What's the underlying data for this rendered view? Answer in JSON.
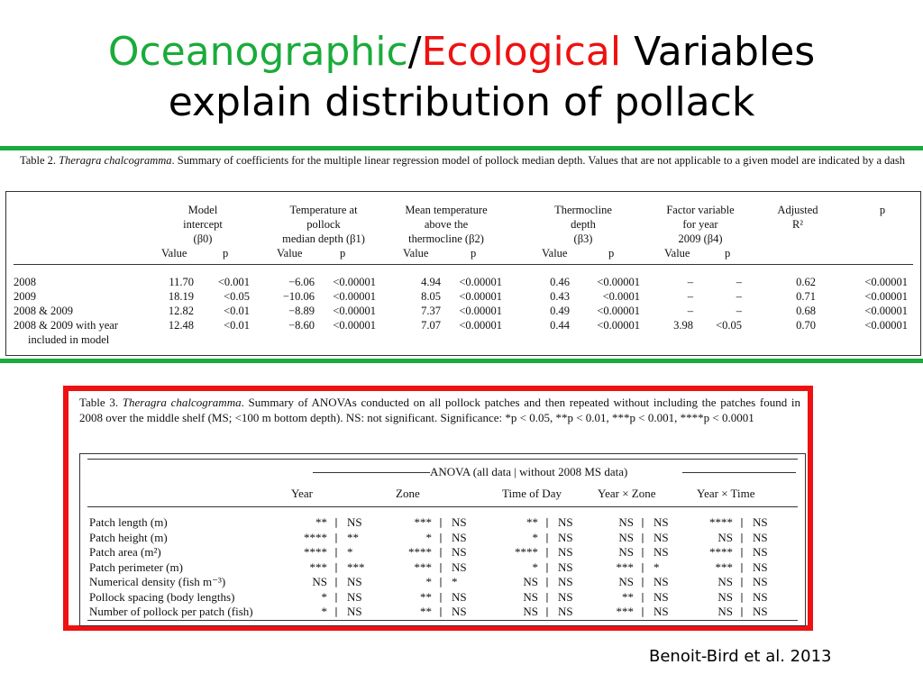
{
  "title": {
    "word1": "Oceanographic",
    "slash": "/",
    "word2": "Ecological",
    "rest1": " Variables",
    "line2": "explain distribution of pollack"
  },
  "colors": {
    "green": "#1aab3a",
    "red": "#ee1111"
  },
  "table2": {
    "caption_pre": "Table 2. ",
    "caption_species": "Theragra chalcogramma",
    "caption_text": ". Summary of coefficients for the multiple linear regression model of pollock median depth. Values that are not applicable to a given model are indicated by a dash",
    "headers": {
      "intercept": [
        "Model",
        "intercept",
        "(β0)"
      ],
      "temp": [
        "Temperature at",
        "pollock",
        "median depth (β1)"
      ],
      "meantemp": [
        "Mean temperature",
        "above the",
        "thermocline (β2)"
      ],
      "thermo": [
        "Thermocline",
        "depth",
        "(β3)"
      ],
      "factor": [
        "Factor variable",
        "for year",
        "2009 (β4)"
      ],
      "adjr2": [
        "Adjusted",
        "R²"
      ],
      "p": "p"
    },
    "value_label": "Value",
    "p_label": "p",
    "rows": [
      {
        "label": [
          "2008"
        ],
        "cells": [
          "11.70",
          "<0.001",
          "−6.06",
          "<0.00001",
          "4.94",
          "<0.00001",
          "0.46",
          "<0.00001",
          "–",
          "–",
          "0.62",
          "<0.00001"
        ]
      },
      {
        "label": [
          "2009"
        ],
        "cells": [
          "18.19",
          "<0.05",
          "−10.06",
          "<0.00001",
          "8.05",
          "<0.00001",
          "0.43",
          "<0.0001",
          "–",
          "–",
          "0.71",
          "<0.00001"
        ]
      },
      {
        "label": [
          "2008 & 2009"
        ],
        "cells": [
          "12.82",
          "<0.01",
          "−8.89",
          "<0.00001",
          "7.37",
          "<0.00001",
          "0.49",
          "<0.00001",
          "–",
          "–",
          "0.68",
          "<0.00001"
        ]
      },
      {
        "label": [
          "2008 & 2009 with year",
          "included in model"
        ],
        "cells": [
          "12.48",
          "<0.01",
          "−8.60",
          "<0.00001",
          "7.07",
          "<0.00001",
          "0.44",
          "<0.00001",
          "3.98",
          "<0.05",
          "0.70",
          "<0.00001"
        ]
      }
    ]
  },
  "table3": {
    "caption_pre": "Table 3. ",
    "caption_species": "Theragra chalcogramma",
    "caption_text": ". Summary of ANOVAs conducted on all pollock patches and then repeated without including the patches found in 2008 over the middle shelf (MS; <100 m bottom depth). NS: not significant. Significance: *p < 0.05, **p < 0.01, ***p < 0.001, ****p < 0.0001",
    "group_header": "ANOVA (all data | without 2008 MS data)",
    "columns": [
      "Year",
      "Zone",
      "Time of Day",
      "Year × Zone",
      "Year × Time"
    ],
    "rows": [
      {
        "label": "Patch length (m)",
        "cells": [
          "**",
          "NS",
          "***",
          "NS",
          "**",
          "NS",
          "NS",
          "NS",
          "****",
          "NS"
        ]
      },
      {
        "label": "Patch height (m)",
        "cells": [
          "****",
          "**",
          "*",
          "NS",
          "*",
          "NS",
          "NS",
          "NS",
          "NS",
          "NS"
        ]
      },
      {
        "label": "Patch area (m²)",
        "cells": [
          "****",
          "*",
          "****",
          "NS",
          "****",
          "NS",
          "NS",
          "NS",
          "****",
          "NS"
        ]
      },
      {
        "label": "Patch perimeter (m)",
        "cells": [
          "***",
          "***",
          "***",
          "NS",
          "*",
          "NS",
          "***",
          "*",
          "***",
          "NS"
        ]
      },
      {
        "label": "Numerical density (fish m⁻³)",
        "cells": [
          "NS",
          "NS",
          "*",
          "*",
          "NS",
          "NS",
          "NS",
          "NS",
          "NS",
          "NS"
        ]
      },
      {
        "label": "Pollock spacing (body lengths)",
        "cells": [
          "*",
          "NS",
          "**",
          "NS",
          "NS",
          "NS",
          "**",
          "NS",
          "NS",
          "NS"
        ]
      },
      {
        "label": "Number of pollock per patch (fish)",
        "cells": [
          "*",
          "NS",
          "**",
          "NS",
          "NS",
          "NS",
          "***",
          "NS",
          "NS",
          "NS"
        ]
      }
    ]
  },
  "citation": "Benoit-Bird et al. 2013"
}
